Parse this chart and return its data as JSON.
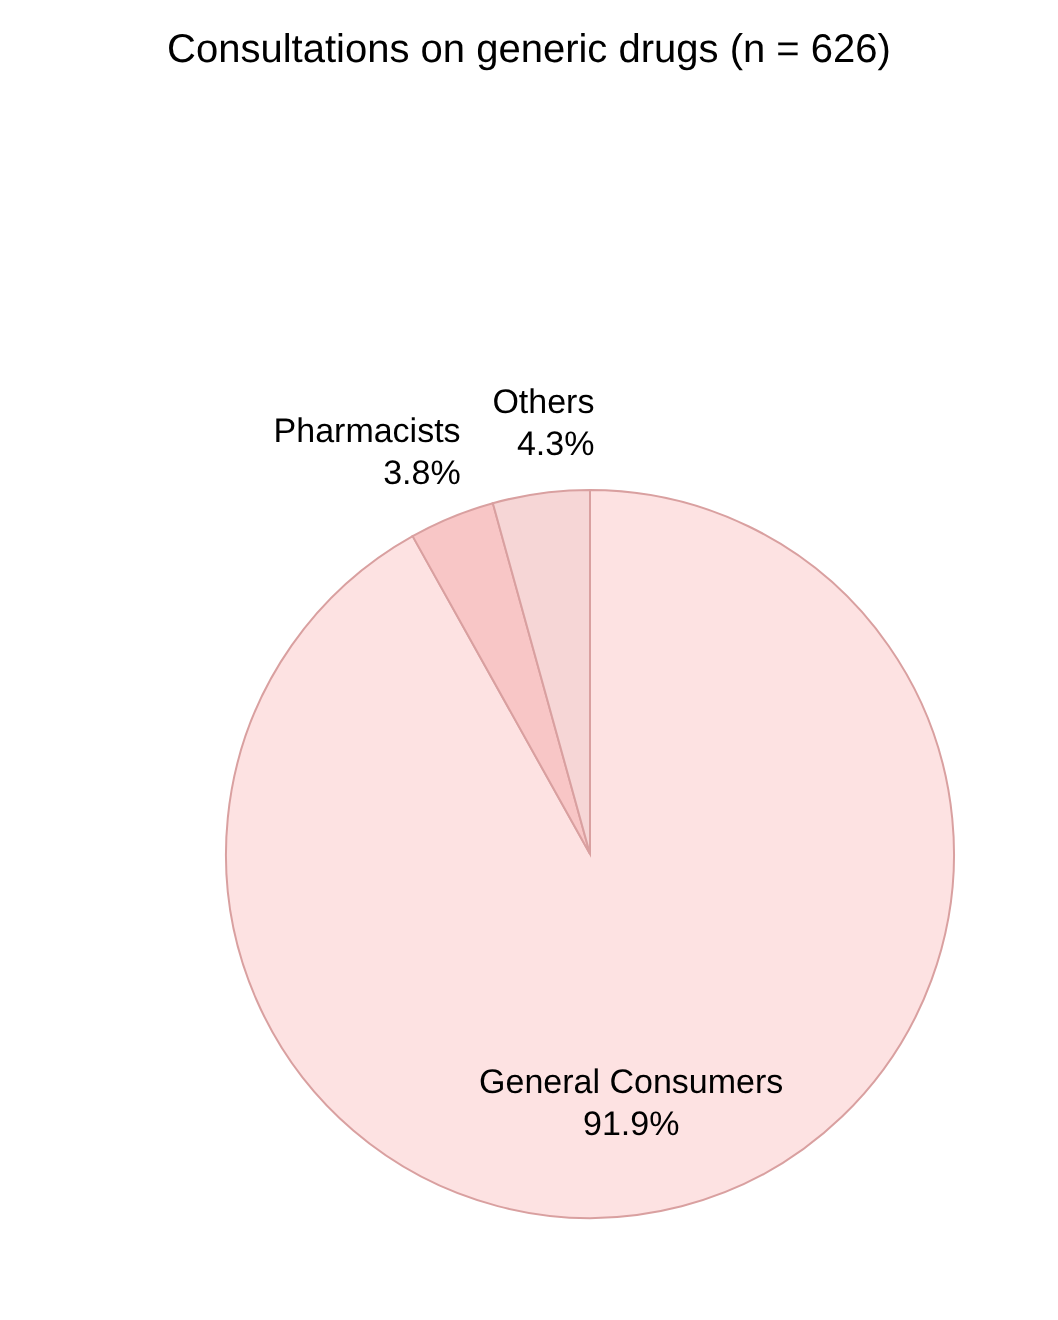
{
  "chart_data": {
    "type": "pie",
    "title": "Consultations on generic drugs (n = 626)",
    "categories": [
      "General Consumers",
      "Pharmacists",
      "Others"
    ],
    "values": [
      91.9,
      3.8,
      4.3
    ],
    "value_labels": [
      "91.9%",
      "3.8%",
      "4.3%"
    ],
    "colors": [
      "#fde2e2",
      "#f8c6c6",
      "#f6d6d6"
    ],
    "legend": false
  }
}
